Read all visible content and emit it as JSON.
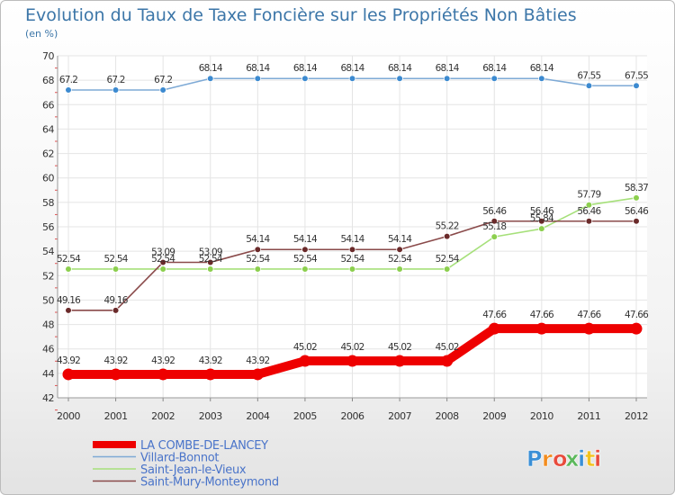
{
  "chart_data": {
    "type": "line",
    "title": "Evolution du Taux de Taxe Foncière sur les Propriétés Non Bâties",
    "ylabel": "(en %)",
    "xlabel": "",
    "ylim": [
      42,
      70
    ],
    "yticks": [
      42,
      44,
      46,
      48,
      50,
      52,
      54,
      56,
      58,
      60,
      62,
      64,
      66,
      68,
      70
    ],
    "grid": true,
    "x": [
      "2000",
      "2001",
      "2002",
      "2003",
      "2004",
      "2005",
      "2006",
      "2007",
      "2008",
      "2009",
      "2010",
      "2011",
      "2012"
    ],
    "series": [
      {
        "name": "LA COMBE-DE-LANCEY",
        "color": "#ee0000",
        "marker_color": "#ee0000",
        "values": [
          43.92,
          43.92,
          43.92,
          43.92,
          43.92,
          45.02,
          45.02,
          45.02,
          45.02,
          47.66,
          47.66,
          47.66,
          47.66
        ],
        "labels": [
          "43.92",
          "43.92",
          "43.92",
          "43.92",
          "43.92",
          "45.02",
          "45.02",
          "45.02",
          "45.02",
          "47.66",
          "47.66",
          "47.66",
          "47.66"
        ]
      },
      {
        "name": "Villard-Bonnot",
        "color": "#7eaad6",
        "marker_color": "#3c8ad0",
        "values": [
          67.2,
          67.2,
          67.2,
          68.14,
          68.14,
          68.14,
          68.14,
          68.14,
          68.14,
          68.14,
          68.14,
          67.55,
          67.55
        ],
        "labels": [
          "67.2",
          "67.2",
          "67.2",
          "68.14",
          "68.14",
          "68.14",
          "68.14",
          "68.14",
          "68.14",
          "68.14",
          "68.14",
          "67.55",
          "67.55"
        ]
      },
      {
        "name": "Saint-Jean-le-Vieux",
        "color": "#a6e07a",
        "marker_color": "#8ccf4e",
        "values": [
          52.54,
          52.54,
          52.54,
          52.54,
          52.54,
          52.54,
          52.54,
          52.54,
          52.54,
          55.18,
          55.84,
          57.79,
          58.37
        ],
        "labels": [
          "52.54",
          "52.54",
          "52.54",
          "52.54",
          "52.54",
          "52.54",
          "52.54",
          "52.54",
          "52.54",
          "55.18",
          "55.84",
          "57.79",
          "58.37"
        ]
      },
      {
        "name": "Saint-Mury-Monteymond",
        "color": "#8a4a4a",
        "marker_color": "#6a2a2a",
        "values": [
          49.16,
          49.16,
          53.09,
          53.09,
          54.14,
          54.14,
          54.14,
          54.14,
          55.22,
          56.46,
          56.46,
          56.46,
          56.46
        ],
        "labels": [
          "49.16",
          "49.16",
          "53.09",
          "53.09",
          "54.14",
          "54.14",
          "54.14",
          "54.14",
          "55.22",
          "56.46",
          "56.46",
          "56.46",
          "56.46"
        ]
      }
    ]
  },
  "branding": {
    "logo_text": "Proxiti",
    "logo_colors": [
      "#3a8fd6",
      "#f28c1e",
      "#e84b3c",
      "#5cb85c",
      "#3a8fd6",
      "#f2c21e",
      "#e84b3c"
    ]
  }
}
